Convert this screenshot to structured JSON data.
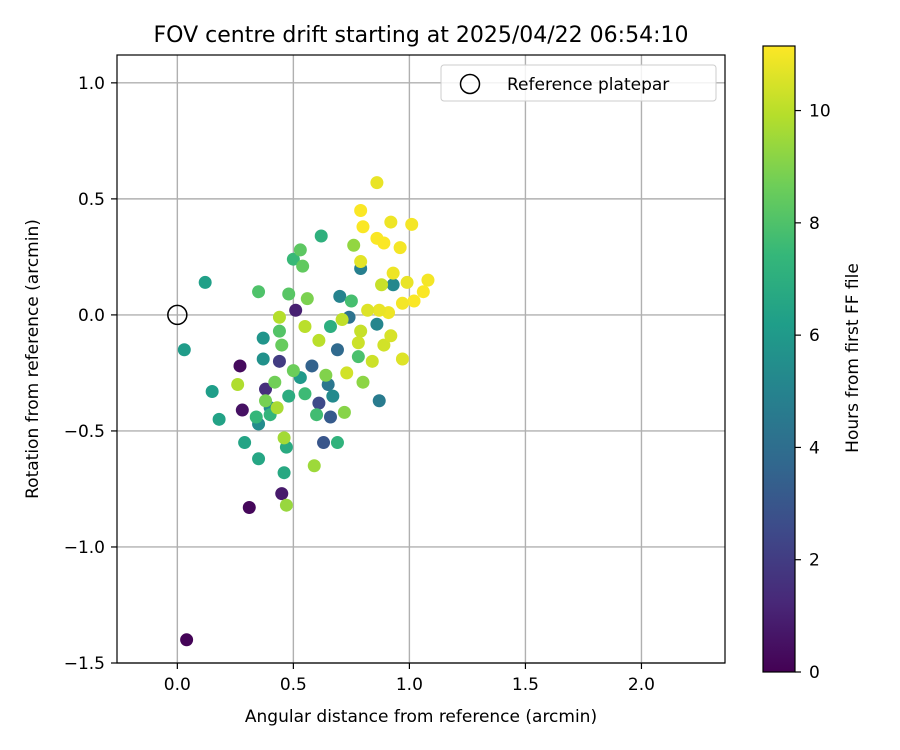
{
  "chart_data": {
    "type": "scatter",
    "title": "FOV centre drift starting at 2025/04/22 06:54:10",
    "xlabel": "Angular distance from reference (arcmin)",
    "ylabel": "Rotation from reference (arcmin)",
    "xlim": [
      -0.26,
      2.36
    ],
    "ylim": [
      -1.5,
      1.12
    ],
    "xticks": [
      0.0,
      0.5,
      1.0,
      1.5,
      2.0
    ],
    "xtick_labels": [
      "0.0",
      "0.5",
      "1.0",
      "1.5",
      "2.0"
    ],
    "yticks": [
      -1.5,
      -1.0,
      -0.5,
      0.0,
      0.5,
      1.0
    ],
    "ytick_labels": [
      "−1.5",
      "−1.0",
      "−0.5",
      "0.0",
      "0.5",
      "1.0"
    ],
    "grid": true,
    "legend": {
      "position": "top-right",
      "entries": [
        {
          "label": "Reference platepar",
          "marker": "open-circle",
          "color": "#000000"
        }
      ]
    },
    "reference_point": {
      "x": 0.0,
      "y": 0.0
    },
    "colorbar": {
      "label": "Hours from first FF file",
      "min": 0,
      "max": 11.15,
      "ticks": [
        0,
        2,
        4,
        6,
        8,
        10
      ],
      "tick_labels": [
        "0",
        "2",
        "4",
        "6",
        "8",
        "10"
      ],
      "colormap": "viridis",
      "stops": [
        "#440154",
        "#482878",
        "#3e4989",
        "#31688e",
        "#26828e",
        "#1f9e89",
        "#35b779",
        "#6ece58",
        "#b5de2b",
        "#fde725"
      ]
    },
    "points": [
      {
        "x": 0.04,
        "y": -1.4,
        "c": 0.1
      },
      {
        "x": 0.31,
        "y": -0.83,
        "c": 0.2
      },
      {
        "x": 0.27,
        "y": -0.22,
        "c": 0.3
      },
      {
        "x": 0.28,
        "y": -0.41,
        "c": 0.5
      },
      {
        "x": 0.45,
        "y": -0.77,
        "c": 0.8
      },
      {
        "x": 0.51,
        "y": 0.02,
        "c": 1.0
      },
      {
        "x": 0.38,
        "y": -0.32,
        "c": 1.5
      },
      {
        "x": 0.44,
        "y": -0.2,
        "c": 2.0
      },
      {
        "x": 0.61,
        "y": -0.38,
        "c": 2.5
      },
      {
        "x": 0.63,
        "y": -0.55,
        "c": 3.0
      },
      {
        "x": 0.66,
        "y": -0.44,
        "c": 3.2
      },
      {
        "x": 0.58,
        "y": -0.22,
        "c": 3.5
      },
      {
        "x": 0.69,
        "y": -0.15,
        "c": 3.8
      },
      {
        "x": 0.74,
        "y": -0.01,
        "c": 4.2
      },
      {
        "x": 0.65,
        "y": -0.3,
        "c": 4.4
      },
      {
        "x": 0.87,
        "y": -0.37,
        "c": 4.6
      },
      {
        "x": 0.79,
        "y": 0.2,
        "c": 4.8
      },
      {
        "x": 0.7,
        "y": 0.08,
        "c": 5.0
      },
      {
        "x": 0.86,
        "y": -0.04,
        "c": 5.1
      },
      {
        "x": 0.93,
        "y": 0.13,
        "c": 5.2
      },
      {
        "x": 0.67,
        "y": -0.35,
        "c": 5.3
      },
      {
        "x": 0.35,
        "y": -0.47,
        "c": 5.4
      },
      {
        "x": 0.4,
        "y": -0.4,
        "c": 5.5
      },
      {
        "x": 0.37,
        "y": -0.19,
        "c": 5.6
      },
      {
        "x": 0.37,
        "y": -0.1,
        "c": 5.8
      },
      {
        "x": 0.53,
        "y": -0.27,
        "c": 6.0
      },
      {
        "x": 0.03,
        "y": -0.15,
        "c": 6.1
      },
      {
        "x": 0.15,
        "y": -0.33,
        "c": 6.2
      },
      {
        "x": 0.12,
        "y": 0.14,
        "c": 6.3
      },
      {
        "x": 0.18,
        "y": -0.45,
        "c": 6.4
      },
      {
        "x": 0.29,
        "y": -0.55,
        "c": 6.5
      },
      {
        "x": 0.35,
        "y": -0.62,
        "c": 6.6
      },
      {
        "x": 0.46,
        "y": -0.68,
        "c": 6.7
      },
      {
        "x": 0.47,
        "y": -0.57,
        "c": 6.8
      },
      {
        "x": 0.48,
        "y": -0.35,
        "c": 6.9
      },
      {
        "x": 0.66,
        "y": -0.05,
        "c": 7.0
      },
      {
        "x": 0.62,
        "y": 0.34,
        "c": 7.1
      },
      {
        "x": 0.69,
        "y": -0.55,
        "c": 7.2
      },
      {
        "x": 0.4,
        "y": -0.43,
        "c": 7.3
      },
      {
        "x": 0.34,
        "y": -0.44,
        "c": 7.4
      },
      {
        "x": 0.5,
        "y": 0.24,
        "c": 7.5
      },
      {
        "x": 0.55,
        "y": -0.34,
        "c": 7.6
      },
      {
        "x": 0.6,
        "y": -0.43,
        "c": 7.7
      },
      {
        "x": 0.75,
        "y": 0.06,
        "c": 7.8
      },
      {
        "x": 0.78,
        "y": -0.18,
        "c": 7.9
      },
      {
        "x": 0.35,
        "y": 0.1,
        "c": 8.0
      },
      {
        "x": 0.44,
        "y": -0.07,
        "c": 8.1
      },
      {
        "x": 0.48,
        "y": 0.09,
        "c": 8.2
      },
      {
        "x": 0.53,
        "y": 0.28,
        "c": 8.3
      },
      {
        "x": 0.54,
        "y": 0.21,
        "c": 8.4
      },
      {
        "x": 0.45,
        "y": -0.13,
        "c": 8.5
      },
      {
        "x": 0.5,
        "y": -0.24,
        "c": 8.6
      },
      {
        "x": 0.42,
        "y": -0.29,
        "c": 8.7
      },
      {
        "x": 0.38,
        "y": -0.37,
        "c": 8.8
      },
      {
        "x": 0.56,
        "y": 0.07,
        "c": 8.9
      },
      {
        "x": 0.64,
        "y": -0.26,
        "c": 9.0
      },
      {
        "x": 0.72,
        "y": -0.42,
        "c": 9.1
      },
      {
        "x": 0.8,
        "y": -0.29,
        "c": 9.2
      },
      {
        "x": 0.76,
        "y": 0.3,
        "c": 9.3
      },
      {
        "x": 0.47,
        "y": -0.82,
        "c": 9.4
      },
      {
        "x": 0.59,
        "y": -0.65,
        "c": 9.5
      },
      {
        "x": 0.46,
        "y": -0.53,
        "c": 9.6
      },
      {
        "x": 0.43,
        "y": -0.4,
        "c": 9.7
      },
      {
        "x": 0.26,
        "y": -0.3,
        "c": 9.8
      },
      {
        "x": 0.44,
        "y": -0.01,
        "c": 9.9
      },
      {
        "x": 0.55,
        "y": -0.05,
        "c": 10.0
      },
      {
        "x": 0.61,
        "y": -0.11,
        "c": 10.0
      },
      {
        "x": 0.71,
        "y": -0.02,
        "c": 10.1
      },
      {
        "x": 0.79,
        "y": -0.07,
        "c": 10.2
      },
      {
        "x": 0.84,
        "y": -0.2,
        "c": 10.3
      },
      {
        "x": 0.89,
        "y": -0.13,
        "c": 10.4
      },
      {
        "x": 0.92,
        "y": -0.09,
        "c": 10.5
      },
      {
        "x": 0.97,
        "y": -0.19,
        "c": 10.6
      },
      {
        "x": 0.79,
        "y": 0.23,
        "c": 10.7
      },
      {
        "x": 0.86,
        "y": 0.57,
        "c": 10.8
      },
      {
        "x": 0.92,
        "y": 0.4,
        "c": 10.9
      },
      {
        "x": 0.96,
        "y": 0.29,
        "c": 11.0
      },
      {
        "x": 1.01,
        "y": 0.39,
        "c": 11.0
      },
      {
        "x": 0.79,
        "y": 0.45,
        "c": 11.1
      },
      {
        "x": 0.8,
        "y": 0.38,
        "c": 11.1
      },
      {
        "x": 0.86,
        "y": 0.33,
        "c": 11.1
      },
      {
        "x": 0.89,
        "y": 0.31,
        "c": 11.1
      },
      {
        "x": 0.93,
        "y": 0.18,
        "c": 10.9
      },
      {
        "x": 0.99,
        "y": 0.14,
        "c": 10.8
      },
      {
        "x": 1.08,
        "y": 0.15,
        "c": 11.0
      },
      {
        "x": 1.06,
        "y": 0.1,
        "c": 11.1
      },
      {
        "x": 1.02,
        "y": 0.06,
        "c": 11.1
      },
      {
        "x": 0.97,
        "y": 0.05,
        "c": 11.0
      },
      {
        "x": 0.91,
        "y": 0.01,
        "c": 10.9
      },
      {
        "x": 0.87,
        "y": 0.02,
        "c": 10.8
      },
      {
        "x": 0.82,
        "y": 0.02,
        "c": 10.6
      },
      {
        "x": 0.73,
        "y": -0.25,
        "c": 10.4
      },
      {
        "x": 0.78,
        "y": -0.12,
        "c": 10.3
      },
      {
        "x": 0.88,
        "y": 0.13,
        "c": 10.2
      }
    ]
  }
}
